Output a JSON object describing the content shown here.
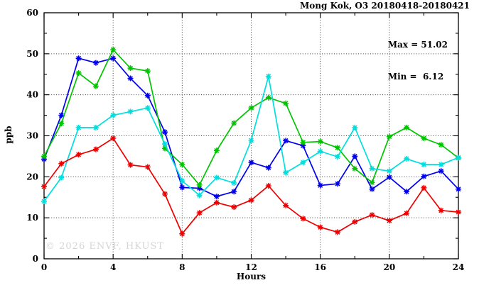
{
  "title": "Mong Kok, O3 20180418-20180421",
  "legend": {
    "max_label": "Max = 51.02",
    "min_label": "Min =  6.12"
  },
  "watermark": "© 2026 ENVF, HKUST",
  "chart_data": {
    "type": "line",
    "title": "Mong Kok, O3 20180418-20180421",
    "xlabel": "Hours",
    "ylabel": "ppb",
    "xlim": [
      0,
      24
    ],
    "ylim": [
      0,
      60
    ],
    "x_major_ticks": [
      0,
      4,
      8,
      12,
      16,
      20,
      24
    ],
    "x_minor_ticks": [
      2,
      6,
      10,
      14,
      18,
      22
    ],
    "y_major_ticks": [
      0,
      10,
      20,
      30,
      40,
      50,
      60
    ],
    "y_minor_ticks": [
      5,
      15,
      25,
      35,
      45,
      55
    ],
    "x_gridlines": [
      4,
      8,
      12,
      16,
      20
    ],
    "y_gridlines": [
      10,
      20,
      30,
      40,
      50
    ],
    "grid_style": "dotted",
    "legend_position": "top-right-inside",
    "annotations": [
      "Max = 51.02",
      "Min =  6.12"
    ],
    "stats": {
      "max": 51.02,
      "min": 6.12
    },
    "x": [
      0,
      1,
      2,
      3,
      4,
      5,
      6,
      7,
      8,
      9,
      10,
      11,
      12,
      13,
      14,
      15,
      16,
      17,
      18,
      19,
      20,
      21,
      22,
      23,
      24
    ],
    "series": [
      {
        "name": "series-blue",
        "color": "#0000ee",
        "values": [
          24.3,
          35.0,
          48.9,
          47.8,
          48.9,
          44.0,
          39.8,
          30.9,
          17.4,
          17.2,
          15.2,
          16.4,
          23.5,
          22.2,
          28.8,
          27.6,
          17.9,
          18.3,
          25.0,
          17.0,
          19.9,
          16.4,
          20.1,
          21.4,
          17.0
        ]
      },
      {
        "name": "series-green",
        "color": "#00c400",
        "values": [
          25.0,
          33.0,
          45.3,
          42.1,
          51.0,
          46.5,
          45.8,
          26.9,
          23.0,
          18.0,
          26.4,
          33.1,
          36.8,
          39.3,
          37.9,
          28.4,
          28.6,
          27.1,
          22.0,
          18.6,
          29.8,
          32.0,
          29.4,
          27.8,
          24.6
        ]
      },
      {
        "name": "series-cyan",
        "color": "#00dede",
        "values": [
          14.0,
          19.8,
          32.0,
          32.0,
          35.0,
          35.9,
          36.8,
          28.0,
          19.0,
          15.5,
          19.8,
          18.5,
          28.9,
          44.5,
          21.0,
          23.5,
          26.2,
          24.9,
          32.0,
          22.0,
          21.4,
          24.4,
          23.0,
          23.0,
          24.7
        ]
      },
      {
        "name": "series-red",
        "color": "#ee0000",
        "values": [
          17.6,
          23.2,
          25.4,
          26.7,
          29.4,
          22.9,
          22.4,
          15.8,
          6.1,
          11.2,
          13.7,
          12.6,
          14.3,
          17.8,
          13.0,
          9.8,
          7.7,
          6.5,
          9.0,
          10.7,
          9.3,
          11.1,
          17.3,
          11.8,
          11.4
        ]
      }
    ]
  }
}
